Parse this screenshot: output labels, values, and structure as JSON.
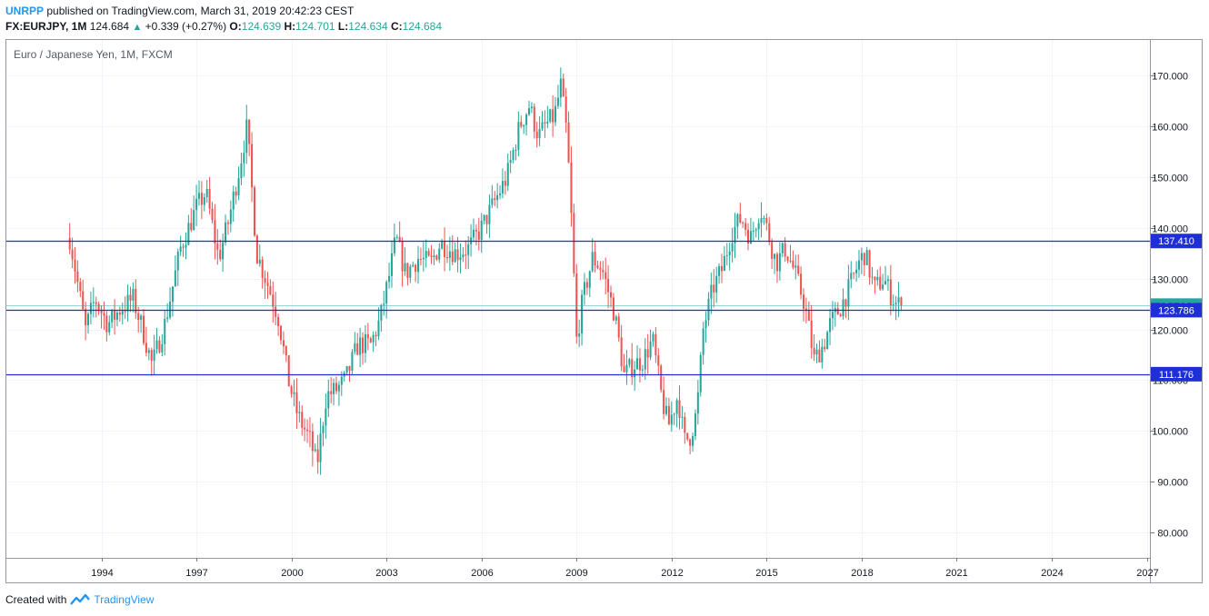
{
  "header": {
    "publisher": "UNRPP",
    "published_text": "published on TradingView.com, March 31, 2019 20:42:23 CEST",
    "symbol": "FX:EURJPY, 1M",
    "last": "124.684",
    "change": "+0.339 (+0.27%)",
    "open_label": "O:",
    "open": "124.639",
    "high_label": "H:",
    "high": "124.701",
    "low_label": "L:",
    "low": "124.634",
    "close_label": "C:",
    "close": "124.684"
  },
  "footer": {
    "created_with": "Created with",
    "brand": "TradingView"
  },
  "colors": {
    "up": "#26a69a",
    "down": "#ef5350",
    "hline": "#1f2fd6",
    "grid": "#f0f3fa",
    "axis": "#787b86"
  },
  "chart_data": {
    "type": "candlestick",
    "title": "Euro / Japanese Yen, 1M, FXCM",
    "ylim": [
      75,
      177
    ],
    "xlim": [
      1991.0,
      2027.1
    ],
    "y_ticks": [
      "80.000",
      "90.000",
      "100.000",
      "110.000",
      "120.000",
      "130.000",
      "140.000",
      "150.000",
      "160.000",
      "170.000"
    ],
    "x_ticks": [
      "1994",
      "1997",
      "2000",
      "2003",
      "2006",
      "2009",
      "2012",
      "2015",
      "2018",
      "2021",
      "2024",
      "2027"
    ],
    "horizontal_lines": [
      {
        "label": "137.410",
        "value": 137.41
      },
      {
        "label": "123.786",
        "value": 123.786
      },
      {
        "label": "111.176",
        "value": 111.176
      }
    ],
    "last_price": {
      "label": "124.684",
      "value": 124.684
    },
    "price_path": [
      [
        1993.0,
        138
      ],
      [
        1993.2,
        131
      ],
      [
        1993.5,
        120
      ],
      [
        1993.8,
        126
      ],
      [
        1994.2,
        121
      ],
      [
        1994.6,
        124
      ],
      [
        1995.0,
        126
      ],
      [
        1995.3,
        120
      ],
      [
        1995.6,
        113
      ],
      [
        1996.0,
        121
      ],
      [
        1996.5,
        136
      ],
      [
        1997.0,
        144
      ],
      [
        1997.3,
        147
      ],
      [
        1997.7,
        134
      ],
      [
        1998.0,
        141
      ],
      [
        1998.3,
        150
      ],
      [
        1998.6,
        160
      ],
      [
        1998.9,
        135
      ],
      [
        1999.3,
        128
      ],
      [
        1999.6,
        122
      ],
      [
        1999.9,
        110
      ],
      [
        2000.2,
        103
      ],
      [
        2000.6,
        98
      ],
      [
        2000.8,
        93
      ],
      [
        2001.1,
        107
      ],
      [
        2001.4,
        108
      ],
      [
        2001.7,
        110
      ],
      [
        2002.1,
        117
      ],
      [
        2002.5,
        117
      ],
      [
        2002.8,
        122
      ],
      [
        2003.1,
        131
      ],
      [
        2003.3,
        138
      ],
      [
        2003.6,
        131
      ],
      [
        2004.0,
        134
      ],
      [
        2004.4,
        133
      ],
      [
        2004.7,
        137
      ],
      [
        2005.2,
        135
      ],
      [
        2005.6,
        136
      ],
      [
        2006.0,
        140
      ],
      [
        2006.4,
        145
      ],
      [
        2006.8,
        150
      ],
      [
        2007.2,
        160
      ],
      [
        2007.5,
        164
      ],
      [
        2007.8,
        158
      ],
      [
        2008.0,
        160
      ],
      [
        2008.3,
        162
      ],
      [
        2008.5,
        168
      ],
      [
        2008.7,
        158
      ],
      [
        2008.85,
        140
      ],
      [
        2009.0,
        118
      ],
      [
        2009.2,
        126
      ],
      [
        2009.5,
        134
      ],
      [
        2009.8,
        132
      ],
      [
        2010.2,
        123
      ],
      [
        2010.5,
        111
      ],
      [
        2010.8,
        113
      ],
      [
        2011.1,
        114
      ],
      [
        2011.4,
        118
      ],
      [
        2011.7,
        106
      ],
      [
        2011.9,
        101
      ],
      [
        2012.2,
        107
      ],
      [
        2012.4,
        98
      ],
      [
        2012.6,
        99
      ],
      [
        2012.8,
        104
      ],
      [
        2013.0,
        120
      ],
      [
        2013.3,
        128
      ],
      [
        2013.6,
        132
      ],
      [
        2013.9,
        139
      ],
      [
        2014.2,
        142
      ],
      [
        2014.5,
        138
      ],
      [
        2014.8,
        144
      ],
      [
        2015.0,
        140
      ],
      [
        2015.3,
        133
      ],
      [
        2015.6,
        136
      ],
      [
        2015.9,
        131
      ],
      [
        2016.2,
        125
      ],
      [
        2016.5,
        114
      ],
      [
        2016.8,
        117
      ],
      [
        2017.0,
        121
      ],
      [
        2017.3,
        124
      ],
      [
        2017.6,
        128
      ],
      [
        2017.9,
        133
      ],
      [
        2018.1,
        135
      ],
      [
        2018.4,
        128
      ],
      [
        2018.7,
        130
      ],
      [
        2018.9,
        127
      ],
      [
        2019.1,
        125
      ],
      [
        2019.25,
        124.684
      ]
    ]
  }
}
